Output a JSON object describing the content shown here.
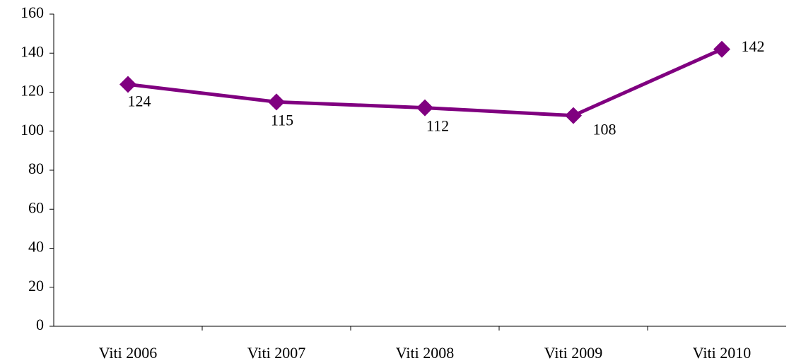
{
  "chart_data": {
    "type": "line",
    "categories": [
      "Viti 2006",
      "Viti 2007",
      "Viti 2008",
      "Viti 2009",
      "Viti 2010"
    ],
    "series": [
      {
        "name": null,
        "color": "#800080",
        "values": [
          124,
          115,
          112,
          108,
          142
        ]
      }
    ],
    "ylim": [
      0,
      160
    ],
    "yticks": [
      0,
      20,
      40,
      60,
      80,
      100,
      120,
      140,
      160
    ],
    "grid": false
  }
}
